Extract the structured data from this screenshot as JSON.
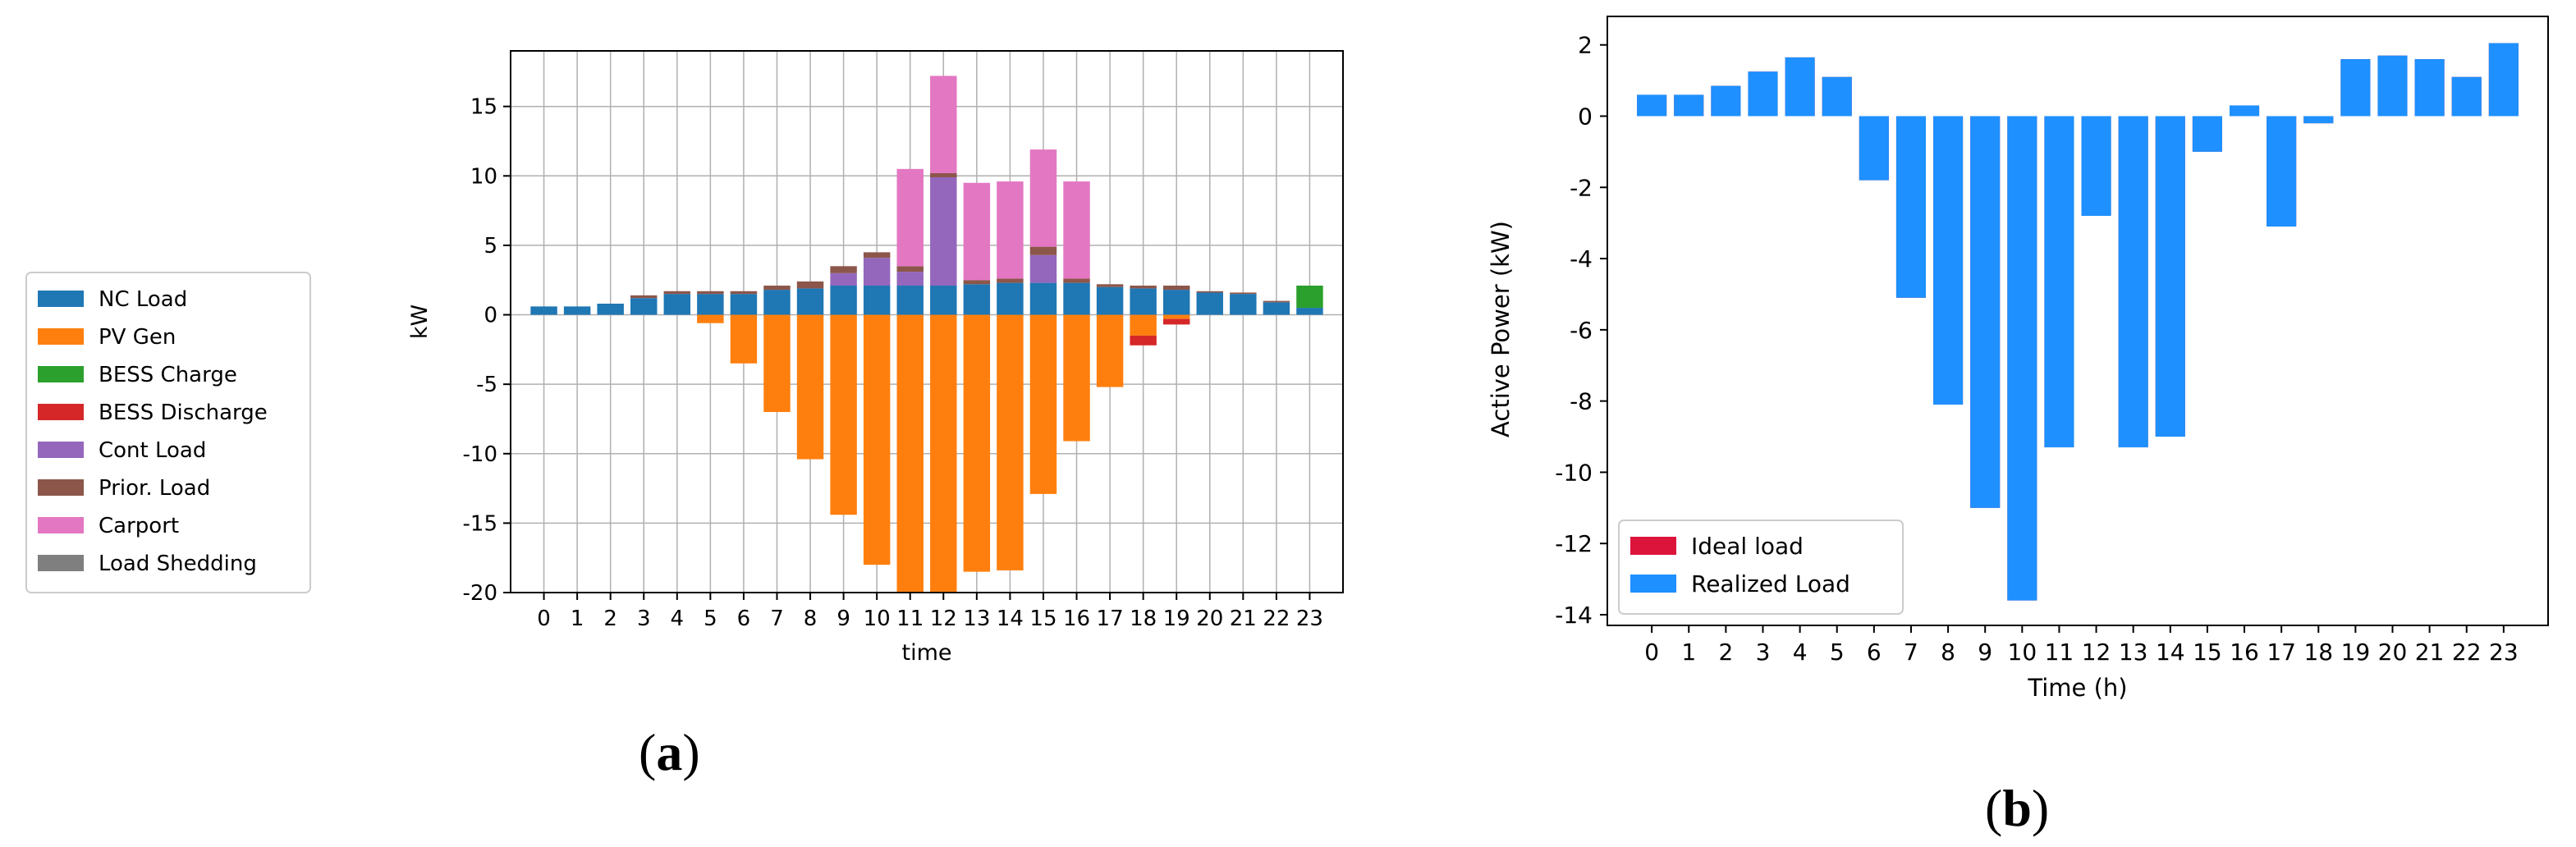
{
  "colors": {
    "nc": "#1f77b4",
    "pv": "#ff7f0e",
    "bess_charge": "#2ca02c",
    "bess_discharge": "#d62728",
    "cont": "#9467bd",
    "prior": "#8c564b",
    "carport": "#e377c2",
    "shed": "#7f7f7f",
    "realized": "#1e90ff",
    "ideal": "#dc143c"
  },
  "captions": {
    "a": "a",
    "b": "b"
  },
  "chart_data": [
    {
      "type": "bar",
      "stacked": true,
      "title": "",
      "xlabel": "time",
      "ylabel": "kW",
      "ylim": [
        -20,
        19
      ],
      "yticks": [
        -20,
        -15,
        -10,
        -5,
        0,
        5,
        10,
        15
      ],
      "grid": true,
      "legend_placement": "outside-left",
      "categories": [
        "0",
        "1",
        "2",
        "3",
        "4",
        "5",
        "6",
        "7",
        "8",
        "9",
        "10",
        "11",
        "12",
        "13",
        "14",
        "15",
        "16",
        "17",
        "18",
        "19",
        "20",
        "21",
        "22",
        "23"
      ],
      "series": [
        {
          "name": "NC Load",
          "color": "#1f77b4",
          "values": [
            0.6,
            0.6,
            0.8,
            1.2,
            1.5,
            1.5,
            1.5,
            1.8,
            1.9,
            2.1,
            2.1,
            2.1,
            2.1,
            2.2,
            2.3,
            2.3,
            2.3,
            2.0,
            1.9,
            1.8,
            1.6,
            1.5,
            0.9,
            0.5
          ]
        },
        {
          "name": "PV Gen",
          "color": "#ff7f0e",
          "values": [
            0,
            0,
            0,
            0,
            0,
            -0.6,
            -3.5,
            -7.0,
            -10.4,
            -14.4,
            -18.0,
            -20.0,
            -20.0,
            -18.5,
            -18.4,
            -12.9,
            -9.1,
            -5.2,
            -1.5,
            -0.3,
            0,
            0,
            0,
            0
          ]
        },
        {
          "name": "BESS Charge",
          "color": "#2ca02c",
          "values": [
            0,
            0,
            0,
            0,
            0,
            0,
            0,
            0,
            0,
            0,
            0,
            0,
            0,
            0,
            0,
            0,
            0,
            0,
            0,
            0,
            0,
            0,
            0,
            1.6
          ]
        },
        {
          "name": "BESS Discharge",
          "color": "#d62728",
          "values": [
            0,
            0,
            0,
            0,
            0,
            0,
            0,
            0,
            0,
            0,
            0,
            0,
            0,
            0,
            0,
            0,
            0,
            0,
            -0.7,
            -0.4,
            0,
            0,
            0,
            0
          ]
        },
        {
          "name": "Cont Load",
          "color": "#9467bd",
          "values": [
            0,
            0,
            0,
            0,
            0,
            0,
            0,
            0,
            0,
            0.9,
            2.0,
            1.0,
            7.8,
            0,
            0,
            2.0,
            0,
            0,
            0,
            0,
            0,
            0,
            0,
            0
          ]
        },
        {
          "name": "Prior. Load",
          "color": "#8c564b",
          "values": [
            0,
            0,
            0,
            0.2,
            0.2,
            0.2,
            0.2,
            0.3,
            0.5,
            0.5,
            0.4,
            0.4,
            0.3,
            0.3,
            0.3,
            0.6,
            0.3,
            0.2,
            0.2,
            0.3,
            0.1,
            0.1,
            0.1,
            0
          ]
        },
        {
          "name": "Carport",
          "color": "#e377c2",
          "values": [
            0,
            0,
            0,
            0,
            0,
            0,
            0,
            0,
            0,
            0,
            0,
            7.0,
            7.0,
            7.0,
            7.0,
            7.0,
            7.0,
            0,
            0,
            0,
            0,
            0,
            0,
            0
          ]
        },
        {
          "name": "Load Shedding",
          "color": "#7f7f7f",
          "values": [
            0,
            0,
            0,
            0,
            0,
            0,
            0,
            0,
            0,
            0,
            0,
            0,
            0,
            0,
            0,
            0,
            0,
            0,
            0,
            0,
            0,
            0,
            0,
            0
          ]
        }
      ]
    },
    {
      "type": "bar",
      "title": "",
      "xlabel": "Time (h)",
      "ylabel": "Active Power (kW)",
      "ylim": [
        -14.3,
        2.8
      ],
      "yticks": [
        -14,
        -12,
        -10,
        -8,
        -6,
        -4,
        -2,
        0,
        2
      ],
      "grid": false,
      "legend_placement": "lower-left",
      "categories": [
        "0",
        "1",
        "2",
        "3",
        "4",
        "5",
        "6",
        "7",
        "8",
        "9",
        "10",
        "11",
        "12",
        "13",
        "14",
        "15",
        "16",
        "17",
        "18",
        "19",
        "20",
        "21",
        "22",
        "23"
      ],
      "series": [
        {
          "name": "Ideal load",
          "color": "#dc143c",
          "values": [
            0.6,
            0.6,
            0.85,
            1.25,
            1.65,
            1.1,
            -1.8,
            -5.1,
            -8.1,
            -11.0,
            -13.6,
            -9.3,
            -2.8,
            -9.3,
            -9.0,
            -1.0,
            0.3,
            -3.1,
            -0.2,
            1.6,
            1.7,
            1.6,
            1.1,
            2.05
          ]
        },
        {
          "name": "Realized Load",
          "color": "#1e90ff",
          "values": [
            0.6,
            0.6,
            0.85,
            1.25,
            1.65,
            1.1,
            -1.8,
            -5.1,
            -8.1,
            -11.0,
            -13.6,
            -9.3,
            -2.8,
            -9.3,
            -9.0,
            -1.0,
            0.3,
            -3.1,
            -0.2,
            1.6,
            1.7,
            1.6,
            1.1,
            2.05
          ]
        }
      ]
    }
  ]
}
